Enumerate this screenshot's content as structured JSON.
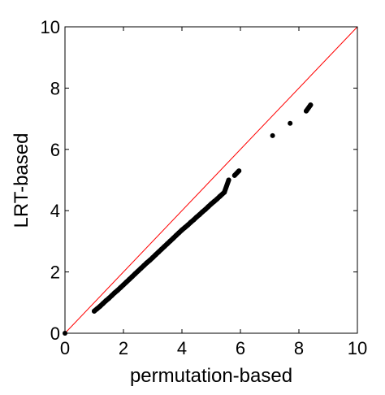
{
  "chart_data": {
    "type": "scatter",
    "title": "",
    "xlabel": "permutation-based",
    "ylabel": "LRT-based",
    "xlim": [
      0,
      10
    ],
    "ylim": [
      0,
      10
    ],
    "xticks": [
      "0",
      "2",
      "4",
      "6",
      "8",
      "10"
    ],
    "yticks": [
      "0",
      "2",
      "4",
      "6",
      "8",
      "10"
    ],
    "grid": false,
    "legend": "none",
    "reference_line": {
      "x": [
        0,
        10
      ],
      "y": [
        0,
        10
      ],
      "color": "#ff0000"
    },
    "series": [
      {
        "color": "#000000",
        "x": [
          0.0,
          1.0,
          1.1,
          1.2,
          1.3,
          1.4,
          1.5,
          1.6,
          1.7,
          1.8,
          1.9,
          2.0,
          2.1,
          2.2,
          2.3,
          2.4,
          2.5,
          2.6,
          2.7,
          2.8,
          2.9,
          3.0,
          3.1,
          3.2,
          3.3,
          3.4,
          3.5,
          3.6,
          3.7,
          3.8,
          3.9,
          4.0,
          4.1,
          4.2,
          4.3,
          4.4,
          4.5,
          4.6,
          4.7,
          4.8,
          4.9,
          5.0,
          5.1,
          5.2,
          5.3,
          5.45,
          5.6,
          5.8,
          5.95,
          7.1,
          7.7,
          8.25,
          8.4
        ],
        "y": [
          0.0,
          0.72,
          0.8,
          0.88,
          0.97,
          1.06,
          1.14,
          1.23,
          1.32,
          1.4,
          1.49,
          1.58,
          1.67,
          1.76,
          1.85,
          1.94,
          2.03,
          2.12,
          2.21,
          2.3,
          2.38,
          2.47,
          2.56,
          2.65,
          2.74,
          2.83,
          2.92,
          3.01,
          3.1,
          3.19,
          3.28,
          3.37,
          3.45,
          3.53,
          3.62,
          3.7,
          3.79,
          3.87,
          3.96,
          4.04,
          4.13,
          4.22,
          4.3,
          4.38,
          4.47,
          4.6,
          5.0,
          5.15,
          5.3,
          6.45,
          6.85,
          7.25,
          7.45
        ]
      }
    ]
  }
}
